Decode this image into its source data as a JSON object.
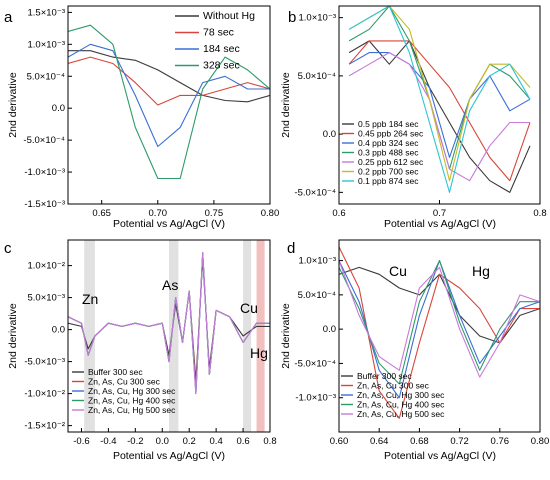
{
  "chart_data": [
    {
      "panel": "a",
      "type": "line",
      "xlabel": "Potential vs Ag/AgCl (V)",
      "ylabel": "2nd derivative",
      "xlim": [
        0.62,
        0.8
      ],
      "ylim": [
        -0.0015,
        0.0016
      ],
      "xticks": [
        0.65,
        0.7,
        0.75,
        0.8
      ],
      "xtick_labels": [
        "0.65",
        "0.70",
        "0.75",
        "0.80"
      ],
      "yticks": [
        -0.0015,
        -0.001,
        -0.0005,
        0,
        0.0005,
        0.001,
        0.0015
      ],
      "ytick_labels": [
        "-1.5×10⁻³",
        "-1.0×10⁻³",
        "-5.0×10⁻⁴",
        "0.0",
        "5.0×10⁻⁴",
        "1.0×10⁻³",
        "1.5×10⁻³"
      ],
      "legend_placement": "top-right",
      "series": [
        {
          "name": "Without Hg",
          "color": "#3a3a3a",
          "x": [
            0.62,
            0.64,
            0.66,
            0.68,
            0.7,
            0.72,
            0.74,
            0.76,
            0.78,
            0.8
          ],
          "y": [
            0.0009,
            0.0009,
            0.0008,
            0.00075,
            0.0006,
            0.0004,
            0.0002,
            0.00012,
            0.0001,
            0.0002
          ]
        },
        {
          "name": "78 sec",
          "color": "#d9453a",
          "x": [
            0.62,
            0.64,
            0.66,
            0.68,
            0.7,
            0.72,
            0.74,
            0.76,
            0.78,
            0.8
          ],
          "y": [
            0.0007,
            0.0008,
            0.0007,
            0.0004,
            5e-05,
            0.0002,
            0.0002,
            0.0003,
            0.0004,
            0.0003
          ]
        },
        {
          "name": "184 sec",
          "color": "#3a6ed6",
          "x": [
            0.62,
            0.64,
            0.66,
            0.68,
            0.7,
            0.72,
            0.74,
            0.76,
            0.78,
            0.8
          ],
          "y": [
            0.0008,
            0.001,
            0.0009,
            0.0002,
            -0.0006,
            -0.0003,
            0.0004,
            0.0005,
            0.0003,
            0.0003
          ]
        },
        {
          "name": "328 sec",
          "color": "#2e9a6a",
          "x": [
            0.62,
            0.64,
            0.66,
            0.68,
            0.7,
            0.72,
            0.74,
            0.76,
            0.78,
            0.8
          ],
          "y": [
            0.0012,
            0.0013,
            0.001,
            -0.0003,
            -0.0011,
            -0.0011,
            0.0003,
            0.0008,
            0.0006,
            0.0003
          ]
        }
      ]
    },
    {
      "panel": "b",
      "type": "line",
      "xlabel": "Potential vs Ag/AgCl (V)",
      "ylabel": "2nd derivative",
      "xlim": [
        0.6,
        0.8
      ],
      "ylim": [
        -0.0006,
        0.0011
      ],
      "xticks": [
        0.6,
        0.7,
        0.8
      ],
      "xtick_labels": [
        "0.6",
        "0.7",
        "0.8"
      ],
      "yticks": [
        -0.0005,
        0,
        0.0005,
        0.001
      ],
      "ytick_labels": [
        "-5.0×10⁻⁴",
        "0.0",
        "5.0×10⁻⁴",
        "1.0×10⁻³"
      ],
      "legend_placement": "bottom-left",
      "series": [
        {
          "name": "0.5 ppb 184 sec",
          "color": "#3a3a3a",
          "x": [
            0.61,
            0.63,
            0.65,
            0.67,
            0.69,
            0.71,
            0.73,
            0.75,
            0.77,
            0.79
          ],
          "y": [
            0.0007,
            0.0008,
            0.0006,
            0.0008,
            0.0004,
            0.0001,
            -0.0002,
            -0.0004,
            -0.0005,
            -0.0001
          ]
        },
        {
          "name": "0.45 ppb 264 sec",
          "color": "#d9453a",
          "x": [
            0.61,
            0.63,
            0.65,
            0.67,
            0.69,
            0.71,
            0.73,
            0.75,
            0.77,
            0.79
          ],
          "y": [
            0.0006,
            0.0008,
            0.0008,
            0.0008,
            0.0006,
            0.0004,
            0.0001,
            -0.0002,
            -0.0004,
            0.0001
          ]
        },
        {
          "name": "0.4 ppb 324 sec",
          "color": "#3a6ed6",
          "x": [
            0.61,
            0.63,
            0.65,
            0.67,
            0.69,
            0.71,
            0.73,
            0.75,
            0.77,
            0.79
          ],
          "y": [
            0.0006,
            0.0007,
            0.0007,
            0.0006,
            0.0004,
            -0.0002,
            0.0003,
            0.0005,
            0.0002,
            0.0003
          ]
        },
        {
          "name": "0.3 ppb 488 sec",
          "color": "#2e9a6a",
          "x": [
            0.61,
            0.63,
            0.65,
            0.67,
            0.69,
            0.71,
            0.73,
            0.75,
            0.77,
            0.79
          ],
          "y": [
            0.0008,
            0.0009,
            0.0011,
            0.0008,
            0.0003,
            -0.0003,
            0.0003,
            0.0006,
            0.0005,
            0.0003
          ]
        },
        {
          "name": "0.25 ppb 612 sec",
          "color": "#c77ad9",
          "x": [
            0.61,
            0.63,
            0.65,
            0.67,
            0.69,
            0.71,
            0.73,
            0.75,
            0.77,
            0.79
          ],
          "y": [
            0.0005,
            0.0006,
            0.0007,
            0.0006,
            0.0003,
            -0.0003,
            -0.0004,
            -0.0001,
            0.0001,
            0.0001
          ]
        },
        {
          "name": "0.2 ppb 700 sec",
          "color": "#c8b92a",
          "x": [
            0.61,
            0.63,
            0.65,
            0.67,
            0.69,
            0.71,
            0.73,
            0.75,
            0.77,
            0.79
          ],
          "y": [
            0.0009,
            0.001,
            0.0011,
            0.0009,
            0.0003,
            -0.0004,
            0.0003,
            0.0006,
            0.0006,
            0.0004
          ]
        },
        {
          "name": "0.1 ppb 874 sec",
          "color": "#2ec4d4",
          "x": [
            0.61,
            0.63,
            0.65,
            0.67,
            0.69,
            0.71,
            0.73,
            0.75,
            0.77,
            0.79
          ],
          "y": [
            0.0009,
            0.001,
            0.0011,
            0.0007,
            0.0001,
            -0.0005,
            0.0002,
            0.0005,
            0.0006,
            0.0003
          ]
        }
      ]
    },
    {
      "panel": "c",
      "type": "line",
      "xlabel": "Potential vs Ag/AgCl (V)",
      "ylabel": "2nd derivative",
      "xlim": [
        -0.7,
        0.8
      ],
      "ylim": [
        -0.016,
        0.014
      ],
      "xticks": [
        -0.6,
        -0.4,
        -0.2,
        0.0,
        0.2,
        0.4,
        0.6,
        0.8
      ],
      "xtick_labels": [
        "-0.6",
        "-0.4",
        "-0.2",
        "0.0",
        "0.2",
        "0.4",
        "0.6",
        "0.8"
      ],
      "yticks": [
        -0.015,
        -0.01,
        -0.005,
        0,
        0.005,
        0.01
      ],
      "ytick_labels": [
        "-1.5×10⁻²",
        "-1.0×10⁻²",
        "-5.0×10⁻³",
        "0.0",
        "5.0×10⁻³",
        "1.0×10⁻²"
      ],
      "legend_placement": "bottom-left",
      "shaded_regions": [
        {
          "label": "Zn",
          "x": [
            -0.58,
            -0.5
          ],
          "color": "#d9d9d9"
        },
        {
          "label": "As",
          "x": [
            0.05,
            0.12
          ],
          "color": "#d9d9d9"
        },
        {
          "label": "Cu",
          "x": [
            0.6,
            0.66
          ],
          "color": "#d9d9d9"
        },
        {
          "label": "Hg",
          "x": [
            0.7,
            0.76
          ],
          "color": "#f0b0b0"
        }
      ],
      "series": [
        {
          "name": "Buffer 300 sec",
          "color": "#3a3a3a",
          "x": [
            -0.7,
            -0.6,
            -0.55,
            -0.5,
            -0.4,
            -0.3,
            -0.2,
            -0.1,
            0.0,
            0.05,
            0.1,
            0.15,
            0.2,
            0.25,
            0.3,
            0.35,
            0.4,
            0.5,
            0.6,
            0.7,
            0.8
          ],
          "y": [
            0.001,
            0.0005,
            -0.003,
            -0.001,
            0.001,
            0.0005,
            0.001,
            0.0005,
            0.001,
            -0.004,
            0.004,
            -0.002,
            0.006,
            -0.008,
            0.011,
            -0.006,
            0.003,
            0.002,
            -0.001,
            0.0005,
            0.0005
          ]
        },
        {
          "name": "Zn, As, Cu  300 sec",
          "color": "#d9453a",
          "x": [
            -0.7,
            -0.6,
            -0.55,
            -0.5,
            -0.4,
            -0.3,
            -0.2,
            -0.1,
            0.0,
            0.05,
            0.1,
            0.15,
            0.2,
            0.25,
            0.3,
            0.35,
            0.4,
            0.5,
            0.6,
            0.7,
            0.8
          ],
          "y": [
            0.002,
            0.001,
            -0.004,
            -0.001,
            0.001,
            0.0005,
            0.001,
            0.0005,
            0.001,
            -0.005,
            0.005,
            -0.002,
            0.006,
            -0.009,
            0.012,
            -0.007,
            0.003,
            0.002,
            -0.002,
            0.001,
            0.001
          ]
        },
        {
          "name": "Zn, As, Cu, Hg  300 sec",
          "color": "#3a6ed6",
          "x": [
            -0.7,
            -0.6,
            -0.55,
            -0.5,
            -0.4,
            -0.3,
            -0.2,
            -0.1,
            0.0,
            0.05,
            0.1,
            0.15,
            0.2,
            0.25,
            0.3,
            0.35,
            0.4,
            0.5,
            0.6,
            0.7,
            0.8
          ],
          "y": [
            0.002,
            0.001,
            -0.004,
            -0.001,
            0.001,
            0.0005,
            0.001,
            0.0005,
            0.001,
            -0.005,
            0.005,
            -0.002,
            0.006,
            -0.01,
            0.012,
            -0.007,
            0.003,
            0.002,
            -0.002,
            0.001,
            0.001
          ]
        },
        {
          "name": "Zn, As, Cu, Hg  400 sec",
          "color": "#2e9a6a",
          "x": [
            -0.7,
            -0.6,
            -0.55,
            -0.5,
            -0.4,
            -0.3,
            -0.2,
            -0.1,
            0.0,
            0.05,
            0.1,
            0.15,
            0.2,
            0.25,
            0.3,
            0.35,
            0.4,
            0.5,
            0.6,
            0.7,
            0.8
          ],
          "y": [
            0.002,
            0.001,
            -0.004,
            -0.001,
            0.001,
            0.0005,
            0.001,
            0.0005,
            0.001,
            -0.005,
            0.005,
            -0.002,
            0.006,
            -0.01,
            0.012,
            -0.007,
            0.003,
            0.002,
            -0.002,
            0.001,
            0.001
          ]
        },
        {
          "name": "Zn, As, Cu, Hg  500 sec",
          "color": "#c77ad9",
          "x": [
            -0.7,
            -0.6,
            -0.55,
            -0.5,
            -0.4,
            -0.3,
            -0.2,
            -0.1,
            0.0,
            0.05,
            0.1,
            0.15,
            0.2,
            0.25,
            0.3,
            0.35,
            0.4,
            0.5,
            0.6,
            0.7,
            0.8
          ],
          "y": [
            0.002,
            0.001,
            -0.004,
            -0.001,
            0.001,
            0.0005,
            0.001,
            0.0005,
            0.001,
            -0.005,
            0.005,
            -0.002,
            0.006,
            -0.01,
            0.012,
            -0.007,
            0.003,
            0.002,
            -0.002,
            0.001,
            0.001
          ]
        }
      ],
      "annotations": [
        "Zn",
        "As",
        "Cu",
        "Hg"
      ]
    },
    {
      "panel": "d",
      "type": "line",
      "xlabel": "Potential vs Ag/AgCl (V)",
      "ylabel": "2nd derivative",
      "xlim": [
        0.6,
        0.8
      ],
      "ylim": [
        -0.0015,
        0.0013
      ],
      "xticks": [
        0.6,
        0.64,
        0.68,
        0.72,
        0.76,
        0.8
      ],
      "xtick_labels": [
        "0.60",
        "0.64",
        "0.68",
        "0.72",
        "0.76",
        "0.80"
      ],
      "yticks": [
        -0.001,
        -0.0005,
        0,
        0.0005,
        0.001
      ],
      "ytick_labels": [
        "-1.0×10⁻³",
        "-5.0×10⁻⁴",
        "0.0",
        "5.0×10⁻⁴",
        "1.0×10⁻³"
      ],
      "legend_placement": "bottom-left",
      "series": [
        {
          "name": "Buffer 300 sec",
          "color": "#3a3a3a",
          "x": [
            0.6,
            0.62,
            0.64,
            0.66,
            0.68,
            0.7,
            0.72,
            0.74,
            0.76,
            0.78,
            0.8
          ],
          "y": [
            0.0008,
            0.0009,
            0.0008,
            0.0006,
            0.0005,
            0.0008,
            0.0002,
            -0.0001,
            -0.0002,
            0.0002,
            0.0003
          ]
        },
        {
          "name": "Zn, As, Cu  300 sec",
          "color": "#d9453a",
          "x": [
            0.6,
            0.62,
            0.64,
            0.66,
            0.68,
            0.7,
            0.72,
            0.74,
            0.76,
            0.78,
            0.8
          ],
          "y": [
            0.0012,
            0.0006,
            -0.0009,
            -0.0013,
            -0.0002,
            0.0008,
            0.0006,
            0.0003,
            -0.0002,
            0.0003,
            0.0003
          ]
        },
        {
          "name": "Zn, As, Cu, Hg  300 sec",
          "color": "#3a6ed6",
          "x": [
            0.6,
            0.62,
            0.64,
            0.66,
            0.68,
            0.7,
            0.72,
            0.74,
            0.76,
            0.78,
            0.8
          ],
          "y": [
            0.001,
            0.0004,
            -0.0006,
            -0.001,
            0.0002,
            0.001,
            0.0002,
            -0.0005,
            -0.0001,
            0.0003,
            0.0004
          ]
        },
        {
          "name": "Zn, As, Cu, Hg  400 sec",
          "color": "#2e9a6a",
          "x": [
            0.6,
            0.62,
            0.64,
            0.66,
            0.68,
            0.7,
            0.72,
            0.74,
            0.76,
            0.78,
            0.8
          ],
          "y": [
            0.0009,
            0.0003,
            -0.0005,
            -0.0008,
            0.0004,
            0.001,
            0.0001,
            -0.0006,
            0.0,
            0.0004,
            0.0004
          ]
        },
        {
          "name": "Zn, As, Cu, Hg  500 sec",
          "color": "#c77ad9",
          "x": [
            0.6,
            0.62,
            0.64,
            0.66,
            0.68,
            0.7,
            0.72,
            0.74,
            0.76,
            0.78,
            0.8
          ],
          "y": [
            0.001,
            0.0002,
            -0.0004,
            -0.0006,
            0.0006,
            0.0009,
            0.0,
            -0.0007,
            -0.0002,
            0.0005,
            0.0004
          ]
        }
      ],
      "annotations": [
        "Cu",
        "Hg"
      ]
    }
  ]
}
